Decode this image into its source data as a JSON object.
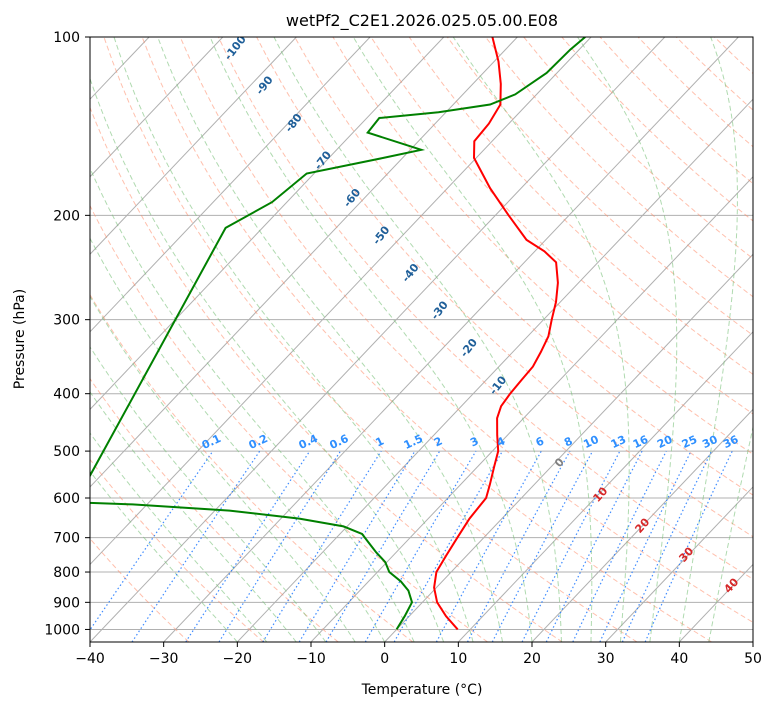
{
  "chart_data": {
    "type": "line",
    "subtype": "skew-t log-p diagram",
    "title": "wetPf2_C2E1.2026.025.05.00.E08",
    "xlabel": "Temperature (°C)",
    "ylabel": "Pressure (hPa)",
    "xlim": [
      -40,
      50
    ],
    "ylim": [
      1050,
      100
    ],
    "yscale": "log",
    "x_ticks": [
      -40,
      -30,
      -20,
      -10,
      0,
      10,
      20,
      30,
      40,
      50
    ],
    "y_ticks": [
      100,
      200,
      300,
      400,
      500,
      600,
      700,
      800,
      900,
      1000
    ],
    "grid": true,
    "series": [
      {
        "role": "temperature",
        "color": "#ff0000",
        "points": [
          {
            "p": 1000,
            "t": 8.3
          },
          {
            "p": 950,
            "t": 5.0
          },
          {
            "p": 900,
            "t": 2.0
          },
          {
            "p": 850,
            "t": -0.3
          },
          {
            "p": 800,
            "t": -2.0
          },
          {
            "p": 750,
            "t": -2.8
          },
          {
            "p": 700,
            "t": -3.6
          },
          {
            "p": 650,
            "t": -4.4
          },
          {
            "p": 600,
            "t": -4.8
          },
          {
            "p": 570,
            "t": -6.0
          },
          {
            "p": 530,
            "t": -7.8
          },
          {
            "p": 500,
            "t": -9.2
          },
          {
            "p": 470,
            "t": -11.4
          },
          {
            "p": 440,
            "t": -13.6
          },
          {
            "p": 420,
            "t": -14.6
          },
          {
            "p": 400,
            "t": -15.0
          },
          {
            "p": 380,
            "t": -15.2
          },
          {
            "p": 360,
            "t": -15.4
          },
          {
            "p": 340,
            "t": -16.2
          },
          {
            "p": 320,
            "t": -17.2
          },
          {
            "p": 300,
            "t": -18.9
          },
          {
            "p": 280,
            "t": -20.6
          },
          {
            "p": 260,
            "t": -22.8
          },
          {
            "p": 240,
            "t": -25.7
          },
          {
            "p": 230,
            "t": -28.7
          },
          {
            "p": 220,
            "t": -32.6
          },
          {
            "p": 200,
            "t": -38.2
          },
          {
            "p": 180,
            "t": -44.2
          },
          {
            "p": 160,
            "t": -50.3
          },
          {
            "p": 150,
            "t": -52.4
          },
          {
            "p": 140,
            "t": -52.7
          },
          {
            "p": 130,
            "t": -53.6
          },
          {
            "p": 120,
            "t": -56.2
          },
          {
            "p": 110,
            "t": -59.4
          },
          {
            "p": 100,
            "t": -63.4
          }
        ]
      },
      {
        "role": "dewpoint",
        "color": "#008000",
        "points": [
          {
            "p": 1000,
            "t": 0.0
          },
          {
            "p": 950,
            "t": -0.6
          },
          {
            "p": 900,
            "t": -1.4
          },
          {
            "p": 860,
            "t": -3.4
          },
          {
            "p": 830,
            "t": -5.6
          },
          {
            "p": 800,
            "t": -8.4
          },
          {
            "p": 770,
            "t": -10.2
          },
          {
            "p": 740,
            "t": -12.8
          },
          {
            "p": 710,
            "t": -15.3
          },
          {
            "p": 690,
            "t": -17.0
          },
          {
            "p": 670,
            "t": -20.5
          },
          {
            "p": 650,
            "t": -27.5
          },
          {
            "p": 630,
            "t": -38.0
          },
          {
            "p": 615,
            "t": -52.0
          },
          {
            "p": 610,
            "t": -60.0
          },
          {
            "p": 210,
            "t": -75.0
          },
          {
            "p": 190,
            "t": -72.0
          },
          {
            "p": 170,
            "t": -71.0
          },
          {
            "p": 160,
            "t": -62.6
          },
          {
            "p": 155,
            "t": -58.5
          },
          {
            "p": 145,
            "t": -68.0
          },
          {
            "p": 137,
            "t": -68.3
          },
          {
            "p": 134,
            "t": -61.0
          },
          {
            "p": 130,
            "t": -55.0
          },
          {
            "p": 125,
            "t": -52.9
          },
          {
            "p": 115,
            "t": -51.4
          },
          {
            "p": 105,
            "t": -51.2
          },
          {
            "p": 100,
            "t": -50.8
          }
        ]
      }
    ],
    "dry_adiabat_labels": [
      "-100",
      "-90",
      "-80",
      "-70",
      "-60",
      "-50",
      "-40",
      "-30",
      "-20",
      "-10"
    ],
    "mixing_ratio_labels": [
      "0.1",
      "0.2",
      "0.4",
      "0.6",
      "1",
      "1.5",
      "2",
      "3",
      "4",
      "6",
      "8",
      "10",
      "13",
      "16",
      "20",
      "25",
      "30",
      "36"
    ],
    "moist_adiabat_labels": [
      "0",
      "10",
      "20",
      "30",
      "40"
    ],
    "colors": {
      "isobar": "#b0b0b0",
      "isotherm": "#b0b0b0",
      "dry_adiabat": "#ff8c69",
      "moist_adiabat": "#7cc27c",
      "mixing_ratio": "#1e78ff",
      "dry_label": "#1f5f99",
      "mixing_label": "#2e8fff",
      "moist_label": "#d62728",
      "zero_label": "#808080"
    }
  }
}
